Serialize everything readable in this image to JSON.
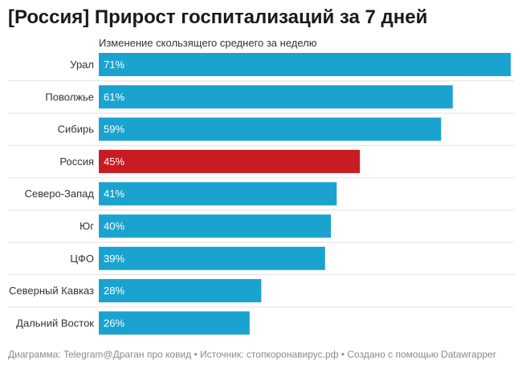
{
  "title": "[Россия] Прирост госпитализаций за 7 дней",
  "subtitle": "Изменение скользящего среднего за неделю",
  "footer": "Диаграмма: Telegram@Драган про ковид • Источник: стопкоронавирус.рф • Создано с помощью Datawrapper",
  "colors": {
    "bar": "#1ba3cf",
    "highlight": "#c71c22",
    "separator": "#e2e2e2"
  },
  "chart_data": {
    "type": "bar",
    "orientation": "horizontal",
    "categories": [
      "Урал",
      "Поволжье",
      "Сибирь",
      "Россия",
      "Северо-Запад",
      "Юг",
      "ЦФО",
      "Северный Кавказ",
      "Дальний Восток"
    ],
    "values": [
      71,
      61,
      59,
      45,
      41,
      40,
      39,
      28,
      26
    ],
    "value_labels": [
      "71%",
      "61%",
      "59%",
      "45%",
      "41%",
      "40%",
      "39%",
      "28%",
      "26%"
    ],
    "highlighted": [
      "Россия"
    ],
    "xlim": [
      0,
      71
    ]
  }
}
